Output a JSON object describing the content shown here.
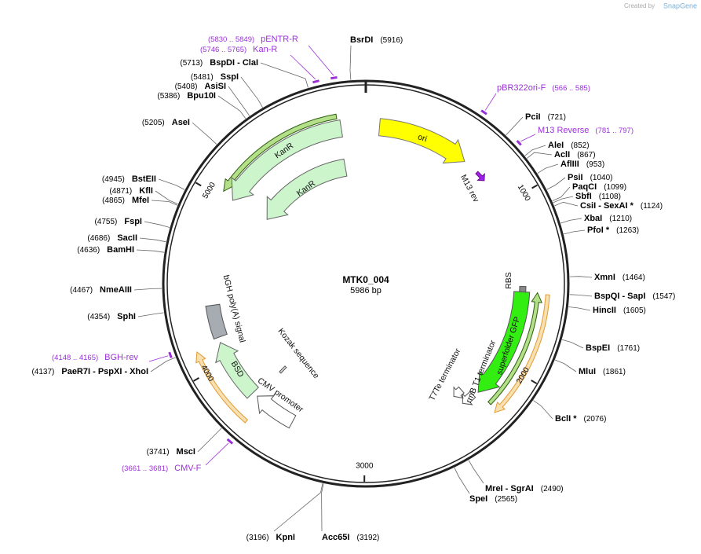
{
  "credit_prefix": "Created by",
  "credit_brand": "SnapGene",
  "map": {
    "name": "MTK0_004",
    "length": {
      "value": 5986,
      "label": "5986 bp"
    },
    "ticks": [
      1000,
      2000,
      3000,
      4000,
      5000
    ]
  },
  "sites": [
    {
      "name": "BsrDI",
      "value": 5916,
      "label": "(5916)"
    },
    {
      "name": "PciI",
      "value": 721,
      "label": "(721)"
    },
    {
      "name": "AleI",
      "value": 852,
      "label": "(852)"
    },
    {
      "name": "AclI",
      "value": 867,
      "label": "(867)"
    },
    {
      "name": "AflIII",
      "value": 953,
      "label": "(953)"
    },
    {
      "name": "PsiI",
      "value": 1040,
      "label": "(1040)"
    },
    {
      "name": "PaqCI",
      "value": 1099,
      "label": "(1099)"
    },
    {
      "name": "SbfI",
      "value": 1108,
      "label": "(1108)"
    },
    {
      "name": "CsiI  - SexAI *",
      "value": 1124,
      "label": "(1124)"
    },
    {
      "name": "XbaI",
      "value": 1210,
      "label": "(1210)"
    },
    {
      "name": "PfoI *",
      "value": 1263,
      "label": "(1263)"
    },
    {
      "name": "XmnI",
      "value": 1464,
      "label": "(1464)"
    },
    {
      "name": "BspQI  - SapI",
      "value": 1547,
      "label": "(1547)"
    },
    {
      "name": "HincII",
      "value": 1605,
      "label": "(1605)"
    },
    {
      "name": "BspEI",
      "value": 1761,
      "label": "(1761)"
    },
    {
      "name": "MluI",
      "value": 1861,
      "label": "(1861)"
    },
    {
      "name": "BclI *",
      "value": 2076,
      "label": "(2076)"
    },
    {
      "name": "MreI  - SgrAI",
      "value": 2490,
      "label": "(2490)"
    },
    {
      "name": "SpeI",
      "value": 2565,
      "label": "(2565)"
    },
    {
      "name": "Acc65I",
      "value": 3192,
      "label": "(3192)"
    },
    {
      "name": "KpnI",
      "value": 3196,
      "label": "(3196)"
    },
    {
      "name": "MscI",
      "value": 3741,
      "label": "(3741)"
    },
    {
      "name": "PaeR7I  - PspXI  - XhoI",
      "value": 4137,
      "label": "(4137)"
    },
    {
      "name": "SphI",
      "value": 4354,
      "label": "(4354)"
    },
    {
      "name": "NmeAIII",
      "value": 4467,
      "label": "(4467)"
    },
    {
      "name": "BamHI",
      "value": 4636,
      "label": "(4636)"
    },
    {
      "name": "SacII",
      "value": 4686,
      "label": "(4686)"
    },
    {
      "name": "FspI",
      "value": 4755,
      "label": "(4755)"
    },
    {
      "name": "MfeI",
      "value": 4865,
      "label": "(4865)"
    },
    {
      "name": "KflI",
      "value": 4871,
      "label": "(4871)"
    },
    {
      "name": "BstEII",
      "value": 4945,
      "label": "(4945)"
    },
    {
      "name": "AseI",
      "value": 5205,
      "label": "(5205)"
    },
    {
      "name": "Bpu10I",
      "value": 5386,
      "label": "(5386)"
    },
    {
      "name": "AsiSI",
      "value": 5408,
      "label": "(5408)"
    },
    {
      "name": "SspI",
      "value": 5481,
      "label": "(5481)"
    },
    {
      "name": "BspDI  - ClaI",
      "value": 5713,
      "label": "(5713)"
    }
  ],
  "primers": [
    {
      "name": "pENTR-R",
      "start": 5830,
      "end": 5849,
      "label": "(5830 .. 5849)"
    },
    {
      "name": "Kan-R",
      "start": 5746,
      "end": 5765,
      "label": "(5746 .. 5765)"
    },
    {
      "name": "pBR322ori-F",
      "start": 566,
      "end": 585,
      "label": "(566 .. 585)"
    },
    {
      "name": "M13 Reverse",
      "start": 781,
      "end": 797,
      "label": "(781 .. 797)"
    },
    {
      "name": "BGH-rev",
      "start": 4148,
      "end": 4165,
      "label": "(4148 .. 4165)"
    },
    {
      "name": "CMV-F",
      "start": 3661,
      "end": 3681,
      "label": "(3661 .. 3681)"
    }
  ],
  "features": [
    "KanR",
    "KanR",
    "ori",
    "M13 rev",
    "RBS",
    "superfolder GFP",
    "rrnB T1 terminator",
    "T7Te terminator",
    "bGH poly(A) signal",
    "BSD",
    "CMV promoter",
    "Kozak sequence"
  ]
}
